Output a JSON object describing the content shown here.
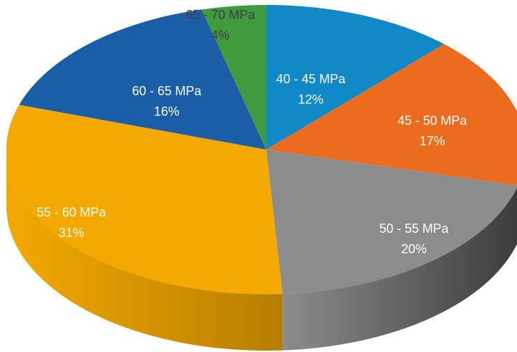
{
  "chart_data": {
    "type": "pie",
    "style": "3d",
    "title": "",
    "slices": [
      {
        "label": "40 - 45 MPa",
        "pct_label": "12%",
        "value": 12,
        "color": "#1089C6",
        "side": "#0B5E88",
        "text_color": "#ffffff"
      },
      {
        "label": "45 - 50 MPa",
        "pct_label": "17%",
        "value": 17,
        "color": "#EC6C1F",
        "side": "#A54A14",
        "text_color": "#ffffff"
      },
      {
        "label": "50 - 55 MPa",
        "pct_label": "20%",
        "value": 20,
        "color": "#8C8C8C",
        "side": "#3C3C3C",
        "text_color": "#ffffff"
      },
      {
        "label": "55 - 60 MPa",
        "pct_label": "31%",
        "value": 31,
        "color": "#F3A900",
        "side": "#B67E00",
        "text_color": "#ffffff"
      },
      {
        "label": "60 - 65 MPa",
        "pct_label": "16%",
        "value": 16,
        "color": "#1A5EA8",
        "side": "#123F71",
        "text_color": "#ffffff"
      },
      {
        "label": "65 - 70 MPa",
        "pct_label": "4%",
        "value": 4,
        "color": "#3E9B3E",
        "side": "#2A6B2A",
        "text_color": "#404040"
      }
    ]
  }
}
